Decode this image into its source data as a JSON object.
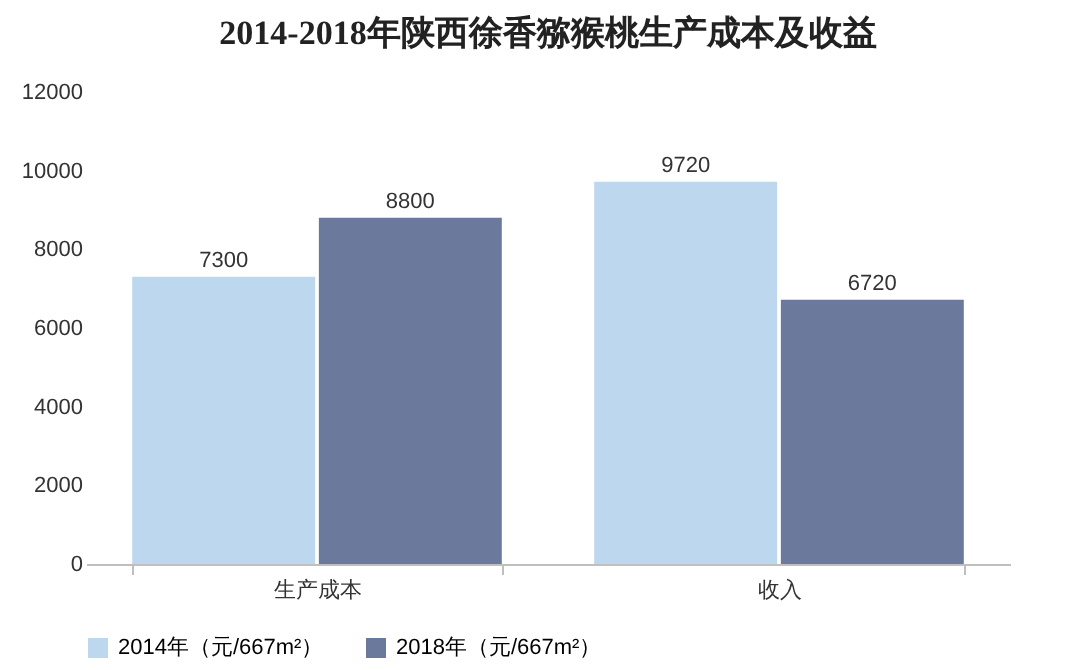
{
  "chart_data": {
    "type": "bar",
    "title": "2014-2018年陕西徐香猕猴桃生产成本及收益",
    "categories": [
      "生产成本",
      "收入"
    ],
    "series": [
      {
        "name": "2014年（元/667m²）",
        "color": "#bdd7ee",
        "values": [
          7300,
          9720
        ]
      },
      {
        "name": "2018年（元/667m²）",
        "color": "#6b7a9c",
        "values": [
          8800,
          6720
        ]
      }
    ],
    "ylim": [
      0,
      12000
    ],
    "yticks": [
      0,
      2000,
      4000,
      6000,
      8000,
      10000,
      12000
    ],
    "data_labels": true,
    "legend": "bottom"
  }
}
